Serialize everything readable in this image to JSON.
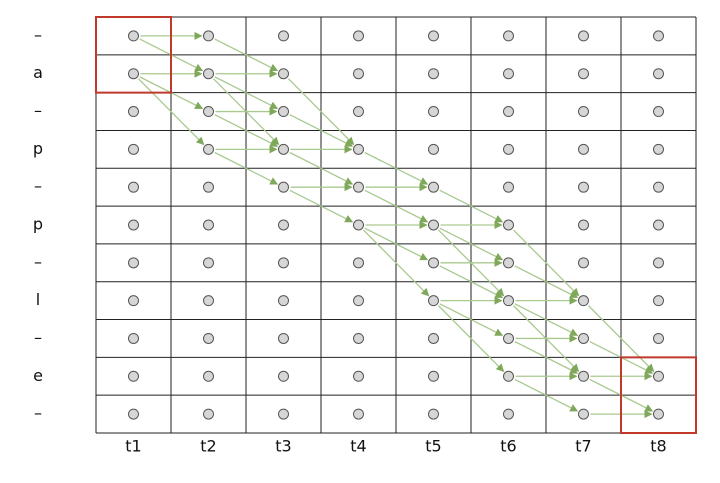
{
  "row_labels": [
    "–",
    "a",
    "–",
    "p",
    "–",
    "p",
    "–",
    "l",
    "–",
    "e",
    "–"
  ],
  "column_labels": [
    "t1",
    "t2",
    "t3",
    "t4",
    "t5",
    "t6",
    "t7",
    "t8"
  ]
}
